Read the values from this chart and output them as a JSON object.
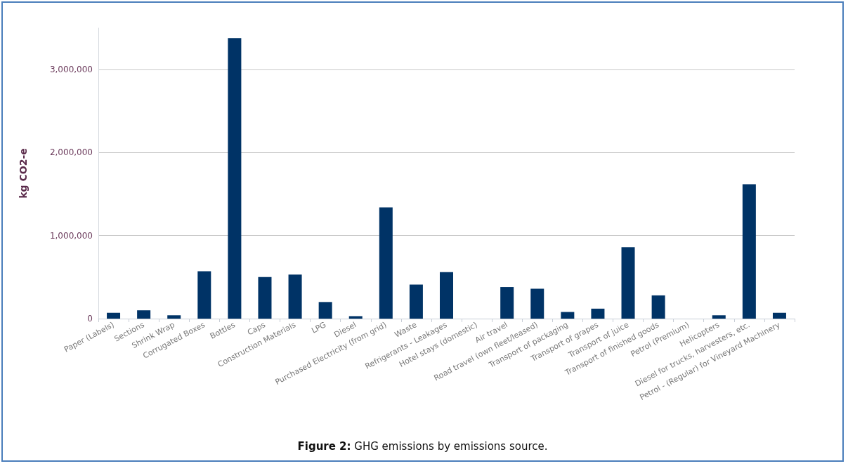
{
  "chart_data": {
    "type": "bar",
    "title": "Figure 2: GHG emissions by emissions source.",
    "ylabel": "kg CO2-e",
    "categories": [
      "Paper (Labels)",
      "Sections",
      "Shrink Wrap",
      "Corrugated Boxes",
      "Bottles",
      "Caps",
      "Construction Materials",
      "LPG",
      "Diesel",
      "Purchased Electricity (from grid)",
      "Waste",
      "Refrigerants - Leakages",
      "Hotel stays (domestic)",
      "Air travel",
      "Road travel (own fleet/leased)",
      "Transport of packaging",
      "Transport of grapes",
      "Transport of juice",
      "Transport of finished goods",
      "Petrol (Premium)",
      "Helicopters",
      "Diesel for trucks, harvesters, etc.",
      "Petrol - (Regular) for Vineyard Machinery"
    ],
    "values": [
      70000,
      100000,
      40000,
      570000,
      3380000,
      500000,
      530000,
      200000,
      30000,
      1340000,
      410000,
      560000,
      0,
      380000,
      360000,
      80000,
      120000,
      860000,
      280000,
      0,
      40000,
      1620000,
      70000
    ],
    "color": "#003366",
    "ylim": [
      0,
      3500000
    ],
    "yticks": [
      0,
      {
        "value": 1000000,
        "label": "1,000,000"
      },
      {
        "value": 2000000,
        "label": "2,000,000"
      },
      {
        "value": 3000000,
        "label": "3,000,000"
      }
    ],
    "grid": "y"
  }
}
